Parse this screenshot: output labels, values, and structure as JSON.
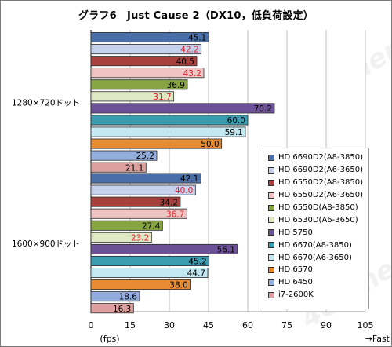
{
  "chart_data": {
    "type": "bar",
    "orientation": "horizontal",
    "title": "グラフ6　Just Cause 2（DX10，低負荷設定）",
    "xlabel": "(fps)",
    "x_direction_label": "→Fast",
    "xlim": [
      0,
      105
    ],
    "x_ticks": [
      "0",
      "15",
      "30",
      "45",
      "60",
      "75",
      "90",
      "105"
    ],
    "grid": true,
    "legend_position": "right",
    "categories": [
      "1280×720ドット",
      "1600×900ドット"
    ],
    "series": [
      {
        "name": "HD 6690D2(A8-3850)",
        "color": "#4a6ea8",
        "label_color": "#000000",
        "values": [
          45.1,
          42.1
        ]
      },
      {
        "name": "HD 6690D2(A6-3650)",
        "color": "#c6d2ec",
        "label_color": "#e0202a",
        "values": [
          42.2,
          40.0
        ]
      },
      {
        "name": "HD 6550D2(A8-3850)",
        "color": "#a8403e",
        "label_color": "#000000",
        "values": [
          40.5,
          34.2
        ]
      },
      {
        "name": "HD 6550D2(A6-3650)",
        "color": "#f0c4c2",
        "label_color": "#e0202a",
        "values": [
          43.2,
          36.7
        ]
      },
      {
        "name": "HD 6550D(A8-3850)",
        "color": "#86a442",
        "label_color": "#000000",
        "values": [
          36.9,
          27.4
        ]
      },
      {
        "name": "HD 6530D(A6-3650)",
        "color": "#dfe9c4",
        "label_color": "#e0202a",
        "values": [
          31.7,
          23.2
        ]
      },
      {
        "name": "HD 5750",
        "color": "#6c5196",
        "label_color": "#000000",
        "values": [
          70.2,
          56.1
        ]
      },
      {
        "name": "HD 6670(A8-3850)",
        "color": "#3a9cae",
        "label_color": "#000000",
        "values": [
          60.0,
          45.2
        ]
      },
      {
        "name": "HD 6670(A6-3650)",
        "color": "#c4e8f2",
        "label_color": "#000000",
        "values": [
          59.1,
          44.7
        ]
      },
      {
        "name": "HD 6570",
        "color": "#e88a32",
        "label_color": "#000000",
        "values": [
          50.0,
          38.0
        ]
      },
      {
        "name": "HD 6450",
        "color": "#93aedd",
        "label_color": "#000000",
        "values": [
          25.2,
          18.6
        ]
      },
      {
        "name": "i7-2600K",
        "color": "#dda09f",
        "label_color": "#000000",
        "values": [
          21.1,
          16.3
        ]
      }
    ],
    "watermark": "4Gamer.net"
  }
}
